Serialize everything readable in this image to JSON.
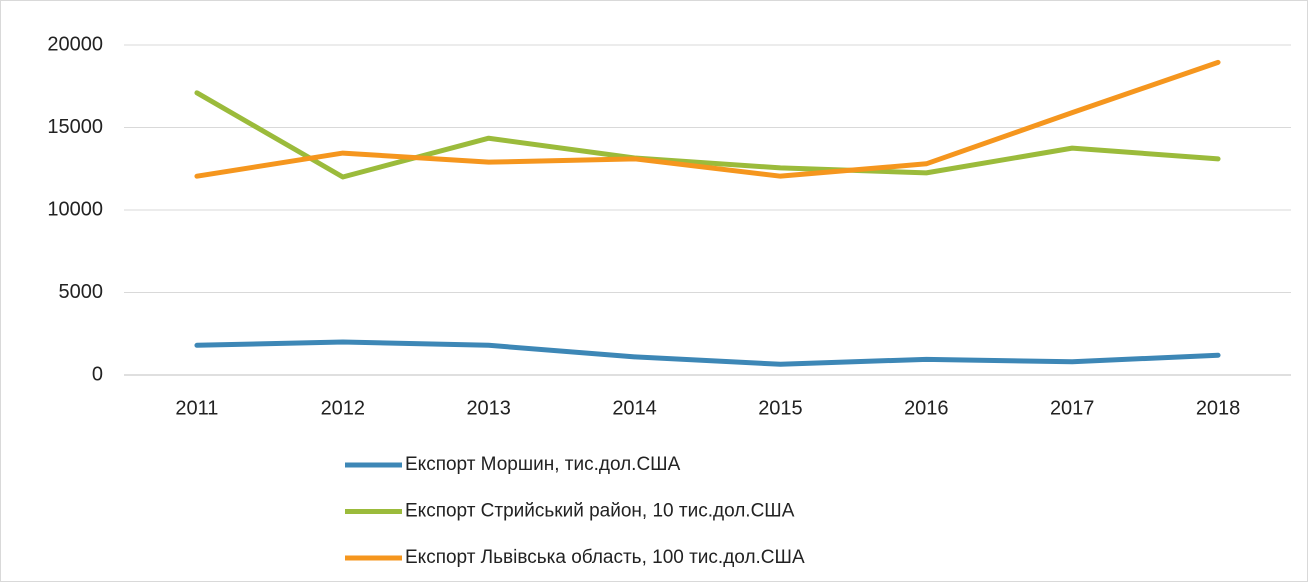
{
  "chart_data": {
    "type": "line",
    "categories": [
      "2011",
      "2012",
      "2013",
      "2014",
      "2015",
      "2016",
      "2017",
      "2018"
    ],
    "series": [
      {
        "name": "Експорт Моршин, тис.дол.США",
        "color": "#3d87b6",
        "values": [
          1800,
          2000,
          1800,
          1100,
          650,
          950,
          800,
          1200
        ]
      },
      {
        "name": "Експорт Стрийський район, 10 тис.дол.США",
        "color": "#9bbb3b",
        "values": [
          17100,
          12000,
          14350,
          13150,
          12550,
          12250,
          13750,
          13100
        ]
      },
      {
        "name": "Експорт Львівська область, 100 тис.дол.США",
        "color": "#f5961e",
        "values": [
          12050,
          13450,
          12900,
          13100,
          12050,
          12800,
          15900,
          18950
        ]
      }
    ],
    "ylim": [
      0,
      20000
    ],
    "yticks": [
      0,
      5000,
      10000,
      15000,
      20000
    ],
    "grid": true,
    "legend": "bottom"
  }
}
